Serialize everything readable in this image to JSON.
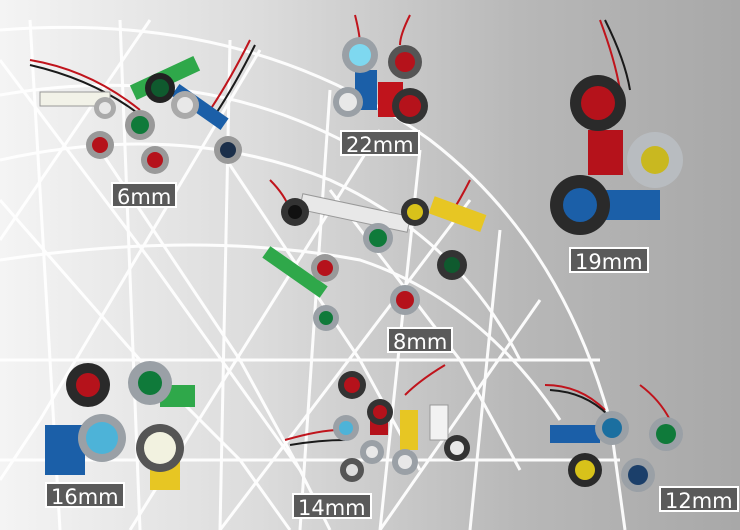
{
  "labels": {
    "mm6": "6mm",
    "mm22": "22mm",
    "mm19": "19mm",
    "mm8": "8mm",
    "mm16": "16mm",
    "mm14": "14mm",
    "mm12": "12mm"
  },
  "colors": {
    "grid": "#ffffff",
    "label_bg": "#5a5a5a",
    "label_text": "#ffffff",
    "lens_red": "#b5121b",
    "lens_green": "#0f7a3a",
    "lens_blue": "#1b5fa8",
    "lens_yellow": "#d8c21a",
    "lens_white": "#f2f2f2",
    "body_metal": "#9aa0a6",
    "wire_red": "#c0141c",
    "wire_black": "#1a1a1a"
  }
}
